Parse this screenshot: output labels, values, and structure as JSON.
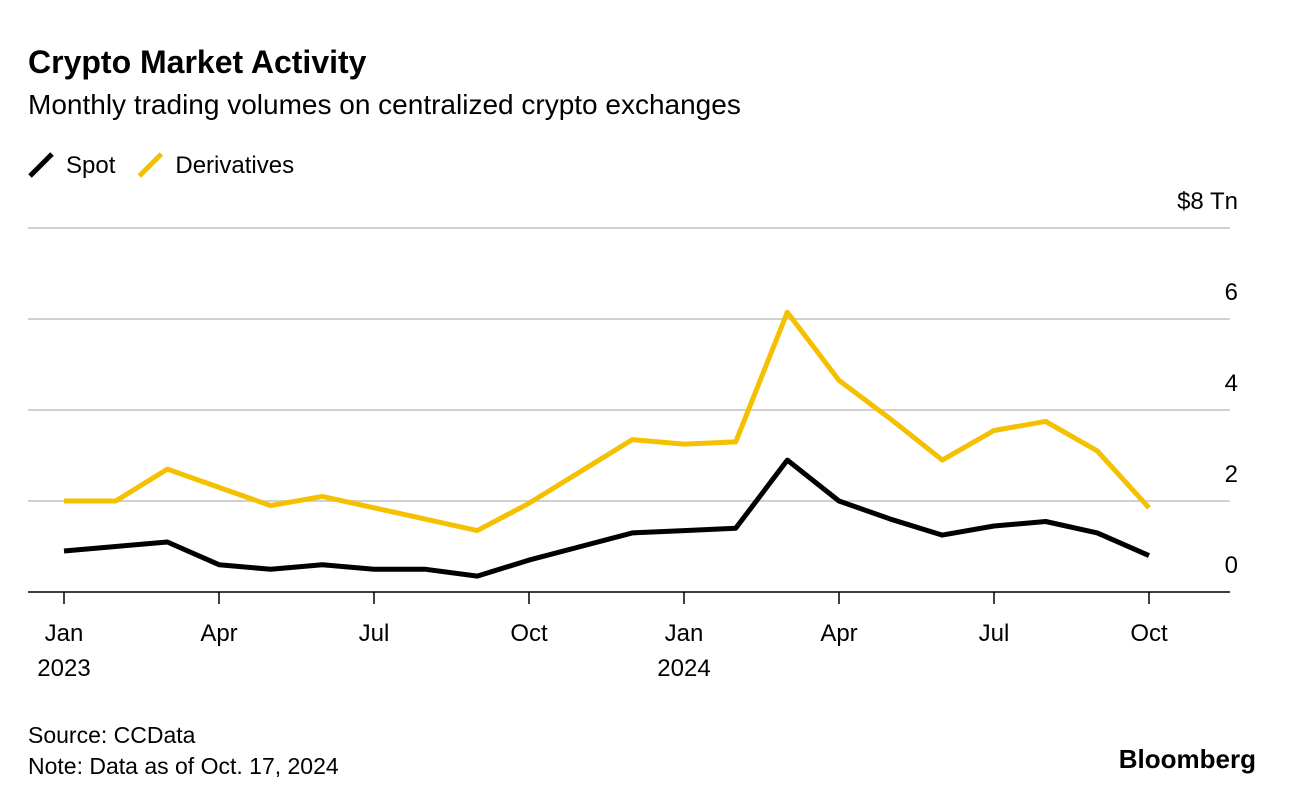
{
  "chart_data": {
    "type": "line",
    "title": "Crypto Market Activity",
    "subtitle": "Monthly trading volumes on centralized crypto exchanges",
    "categories": [
      "Jan 2023",
      null,
      null,
      "Apr",
      null,
      null,
      "Jul",
      null,
      null,
      "Oct",
      null,
      null,
      "Jan 2024",
      null,
      null,
      "Apr",
      null,
      null,
      "Jul",
      null,
      null,
      "Oct"
    ],
    "series": [
      {
        "name": "Spot",
        "color": "#000000",
        "values": [
          0.9,
          1.0,
          1.1,
          0.6,
          0.5,
          0.6,
          0.5,
          0.5,
          0.35,
          0.7,
          1.0,
          1.3,
          1.35,
          1.4,
          2.9,
          2.0,
          1.6,
          1.25,
          1.45,
          1.55,
          1.3,
          0.8
        ]
      },
      {
        "name": "Derivatives",
        "color": "#f5c000",
        "values": [
          2.0,
          2.0,
          2.7,
          2.3,
          1.9,
          2.1,
          1.85,
          1.6,
          1.35,
          1.95,
          2.65,
          3.35,
          3.25,
          3.3,
          6.15,
          4.65,
          3.8,
          2.9,
          3.55,
          3.75,
          3.1,
          1.85
        ]
      }
    ],
    "ylim": [
      0,
      8
    ],
    "yticks": [
      0,
      2,
      4,
      6,
      {
        "value": 8,
        "label": "$8 Tn"
      }
    ],
    "grid": true,
    "source": "Source: CCData",
    "note": "Note: Data as of Oct. 17, 2024",
    "brand": "Bloomberg"
  }
}
